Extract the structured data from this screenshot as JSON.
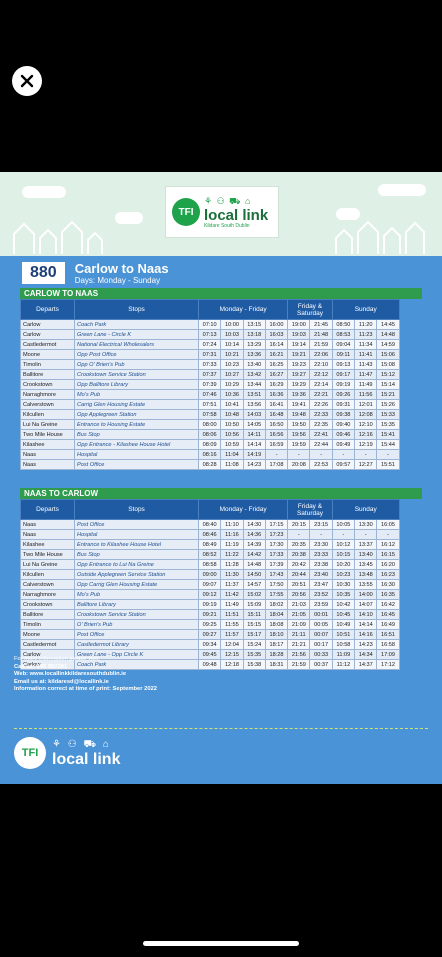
{
  "close_icon": "close-icon",
  "poster": {
    "logo": {
      "badge": "TFI",
      "brand": "local link",
      "sub": "Kildare South Dublin"
    },
    "route": {
      "number": "880",
      "name": "Carlow to Naas",
      "days": "Days: Monday - Sunday"
    },
    "headers": {
      "departs": "Departs",
      "stops": "Stops",
      "mf": "Monday - Friday",
      "fs": "Friday & Saturday",
      "sun": "Sunday"
    },
    "outbound": {
      "title": "CARLOW TO NAAS",
      "rows": [
        [
          "Carlow",
          "Coach Park",
          "07:10",
          "10:00",
          "13:15",
          "16:00",
          "19:00",
          "21:45",
          "08:50",
          "11:20",
          "14:45"
        ],
        [
          "Carlow",
          "Green Lane - Circle K",
          "07:13",
          "10:03",
          "13:18",
          "16:03",
          "19:03",
          "21:48",
          "08:53",
          "11:23",
          "14:48"
        ],
        [
          "Castledermot",
          "National Electrical Wholesalers",
          "07:24",
          "10:14",
          "13:29",
          "16:14",
          "19:14",
          "21:59",
          "09:04",
          "11:34",
          "14:59"
        ],
        [
          "Moone",
          "Opp Post Office",
          "07:31",
          "10:21",
          "13:36",
          "16:21",
          "19:21",
          "22:06",
          "09:11",
          "11:41",
          "15:06"
        ],
        [
          "Timolin",
          "Opp O' Brien's Pub",
          "07:33",
          "10:23",
          "13:40",
          "16:25",
          "19:23",
          "22:10",
          "09:13",
          "11:43",
          "15:08"
        ],
        [
          "Ballitore",
          "Crookstown Service Station",
          "07:37",
          "10:27",
          "13:42",
          "16:27",
          "19:27",
          "22:12",
          "09:17",
          "11:47",
          "15:12"
        ],
        [
          "Crookstown",
          "Opp Ballitore Library",
          "07:39",
          "10:29",
          "13:44",
          "16:29",
          "19:29",
          "22:14",
          "09:19",
          "11:49",
          "15:14"
        ],
        [
          "Narraghmore",
          "Mo's Pub",
          "07:46",
          "10:36",
          "13:51",
          "16:36",
          "19:36",
          "22:21",
          "09:26",
          "11:56",
          "15:21"
        ],
        [
          "Calverstown",
          "Carrig Glen Housing Estate",
          "07:51",
          "10:41",
          "13:56",
          "16:41",
          "19:41",
          "22:26",
          "09:31",
          "12:01",
          "15:26"
        ],
        [
          "Kilcullen",
          "Opp Applegreen Station",
          "07:58",
          "10:48",
          "14:03",
          "16:48",
          "19:48",
          "22:33",
          "09:38",
          "12:08",
          "15:33"
        ],
        [
          "Lui Na Greine",
          "Entrance to Housing Estate",
          "08:00",
          "10:50",
          "14:05",
          "16:50",
          "19:50",
          "22:35",
          "09:40",
          "12:10",
          "15:35"
        ],
        [
          "Two Mile House",
          "Bus Stop",
          "08:06",
          "10:56",
          "14:11",
          "16:56",
          "19:56",
          "22:41",
          "09:46",
          "12:16",
          "15:41"
        ],
        [
          "Kilashee",
          "Opp Entrance - Kilashee House Hotel",
          "08:09",
          "10:59",
          "14:14",
          "16:59",
          "19:59",
          "22:44",
          "09:49",
          "12:19",
          "15:44"
        ],
        [
          "Naas",
          "Hospital",
          "08:16",
          "11:04",
          "14:19",
          "-",
          "-",
          "-",
          "-",
          "-",
          "-"
        ],
        [
          "Naas",
          "Post Office",
          "08:28",
          "11:08",
          "14:23",
          "17:08",
          "20:08",
          "22:53",
          "09:57",
          "12:27",
          "15:51"
        ]
      ]
    },
    "inbound": {
      "title": "NAAS TO CARLOW",
      "rows": [
        [
          "Naas",
          "Post Office",
          "08:40",
          "11:10",
          "14:30",
          "17:15",
          "20:15",
          "23:15",
          "10:05",
          "13:30",
          "16:05"
        ],
        [
          "Naas",
          "Hospital",
          "08:46",
          "11:16",
          "14:36",
          "17:23",
          "-",
          "-",
          "-",
          "-",
          "-"
        ],
        [
          "Kilashee",
          "Entrance to Kilashee House Hotel",
          "08:49",
          "11:19",
          "14:39",
          "17:30",
          "20:35",
          "23:30",
          "10:12",
          "13:37",
          "16:12"
        ],
        [
          "Two Mile House",
          "Bus Stop",
          "08:52",
          "11:22",
          "14:42",
          "17:33",
          "20:38",
          "23:33",
          "10:15",
          "13:40",
          "16:15"
        ],
        [
          "Lui Na Greine",
          "Opp Entrance to Lui Na Greine",
          "08:58",
          "11:28",
          "14:48",
          "17:39",
          "20:42",
          "23:38",
          "10:20",
          "13:45",
          "16:20"
        ],
        [
          "Kilcullen",
          "Outside Applegreen Service Station",
          "09:00",
          "11:30",
          "14:50",
          "17:43",
          "20:44",
          "23:40",
          "10:23",
          "13:48",
          "16:23"
        ],
        [
          "Calverstown",
          "Opp Carrig Glen Housing Estate",
          "09:07",
          "11:37",
          "14:57",
          "17:50",
          "20:51",
          "23:47",
          "10:30",
          "13:55",
          "16:30"
        ],
        [
          "Narraghmore",
          "Mo's Pub",
          "09:12",
          "11:42",
          "15:02",
          "17:55",
          "20:56",
          "23:52",
          "10:35",
          "14:00",
          "16:35"
        ],
        [
          "Crookstown",
          "Ballitore Library",
          "09:19",
          "11:49",
          "15:09",
          "18:02",
          "21:03",
          "23:59",
          "10:42",
          "14:07",
          "16:42"
        ],
        [
          "Ballitore",
          "Crookstown Service Station",
          "09:21",
          "11:51",
          "15:11",
          "18:04",
          "21:05",
          "00:01",
          "10:45",
          "14:10",
          "16:45"
        ],
        [
          "Timolin",
          "O' Brien's Pub",
          "09:25",
          "11:55",
          "15:15",
          "18:08",
          "21:09",
          "00:05",
          "10:49",
          "14:14",
          "16:49"
        ],
        [
          "Moone",
          "Post Office",
          "09:27",
          "11:57",
          "15:17",
          "18:10",
          "21:11",
          "00:07",
          "10:51",
          "14:16",
          "16:51"
        ],
        [
          "Castledermot",
          "Castledermot Library",
          "09:34",
          "12:04",
          "15:24",
          "18:17",
          "21:21",
          "00:17",
          "10:58",
          "14:23",
          "16:58"
        ],
        [
          "Carlow",
          "Green Lane - Opp Circle K",
          "09:45",
          "12:15",
          "15:35",
          "18:28",
          "21:56",
          "00:33",
          "11:09",
          "14:34",
          "17:09"
        ],
        [
          "Carlow",
          "Coach Park",
          "09:48",
          "12:18",
          "15:38",
          "18:31",
          "21:59",
          "00:37",
          "11:12",
          "14:37",
          "17:12"
        ]
      ]
    },
    "footer": {
      "line1": "For more information please visit:",
      "line2": "Call us: 045 982281",
      "line3": "Web: www.locallinkkildaresouthdublin.ie",
      "line4": "Email us at: kildaresd@locallink.ie",
      "line5": "Information correct at time of print: September 2022",
      "badge": "TFI",
      "brand": "local link"
    }
  }
}
